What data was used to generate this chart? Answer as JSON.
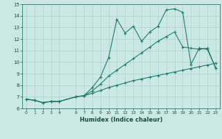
{
  "xlabel": "Humidex (Indice chaleur)",
  "xlim": [
    -0.5,
    23.5
  ],
  "ylim": [
    6,
    15
  ],
  "xticks": [
    0,
    1,
    2,
    3,
    4,
    6,
    7,
    8,
    9,
    10,
    11,
    12,
    13,
    14,
    15,
    16,
    17,
    18,
    19,
    20,
    21,
    22,
    23
  ],
  "yticks": [
    6,
    7,
    8,
    9,
    10,
    11,
    12,
    13,
    14,
    15
  ],
  "line_color": "#1a7a6e",
  "bg_color": "#cce8e4",
  "grid_color": "#aad0cb",
  "line1_x": [
    0,
    1,
    2,
    3,
    4,
    6,
    7,
    8,
    9,
    10,
    11,
    12,
    13,
    14,
    15,
    16,
    17,
    18,
    19,
    20,
    21,
    22,
    23
  ],
  "line1_y": [
    6.8,
    6.7,
    6.5,
    6.6,
    6.6,
    7.0,
    7.1,
    7.8,
    8.7,
    10.4,
    13.7,
    12.5,
    13.1,
    11.8,
    12.6,
    13.1,
    14.5,
    14.6,
    14.3,
    9.8,
    11.2,
    11.1,
    9.5
  ],
  "line2_x": [
    0,
    1,
    2,
    3,
    4,
    6,
    7,
    8,
    9,
    10,
    11,
    12,
    13,
    14,
    15,
    16,
    17,
    18,
    19,
    20,
    21,
    22,
    23
  ],
  "line2_y": [
    6.8,
    6.7,
    6.5,
    6.6,
    6.6,
    7.0,
    7.1,
    7.5,
    8.1,
    8.8,
    9.3,
    9.8,
    10.3,
    10.8,
    11.3,
    11.8,
    12.2,
    12.6,
    11.3,
    11.2,
    11.1,
    11.2,
    9.5
  ],
  "line3_x": [
    0,
    1,
    2,
    3,
    4,
    6,
    7,
    8,
    9,
    10,
    11,
    12,
    13,
    14,
    15,
    16,
    17,
    18,
    19,
    20,
    21,
    22,
    23
  ],
  "line3_y": [
    6.8,
    6.7,
    6.5,
    6.6,
    6.6,
    7.0,
    7.1,
    7.3,
    7.55,
    7.8,
    8.0,
    8.2,
    8.4,
    8.55,
    8.7,
    8.85,
    9.0,
    9.15,
    9.3,
    9.45,
    9.6,
    9.75,
    9.9
  ]
}
